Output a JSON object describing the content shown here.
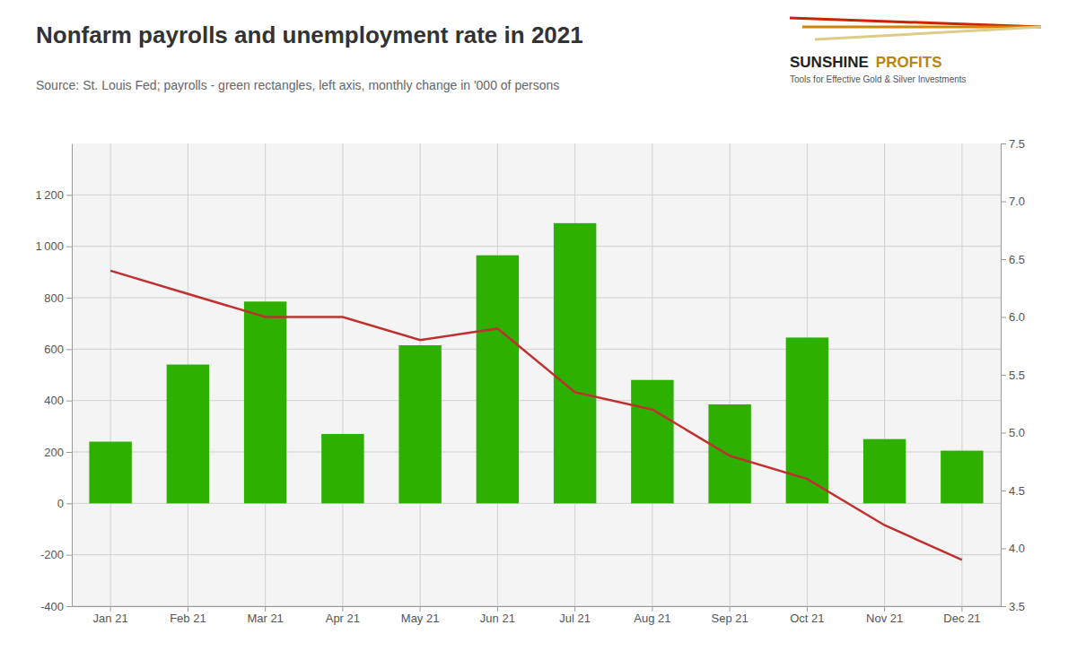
{
  "chart_data": {
    "type": "bar",
    "title": "Nonfarm payrolls and unemployment rate in 2021",
    "subtitle": "Source: St. Louis Fed; payrolls - green rectangles, left axis, monthly change in '000 of persons",
    "annotations": [
      "SUNSHINE",
      "PROFITS",
      "Tools for Effective Gold & Silver Investments"
    ],
    "categories": [
      "Jan 21",
      "Feb 21",
      "Mar 21",
      "Apr 21",
      "May 21",
      "Jun 21",
      "Jul 21",
      "Aug 21",
      "Sep 21",
      "Oct 21",
      "Nov 21",
      "Dec 21"
    ],
    "series": [
      {
        "type": "bar",
        "color": "#2DB000",
        "values": [
          240,
          540,
          785,
          270,
          615,
          965,
          1090,
          480,
          385,
          645,
          250,
          205
        ]
      },
      {
        "type": "line",
        "axis": "y2",
        "color": "#C03030",
        "values": [
          6.4,
          6.2,
          6.0,
          6.0,
          5.8,
          5.9,
          5.35,
          5.2,
          4.8,
          4.6,
          4.2,
          3.9
        ]
      }
    ],
    "ylim": [
      -400,
      1400
    ],
    "yticks": [
      -400,
      -200,
      0,
      200,
      400,
      600,
      800,
      {
        "value": 1000,
        "label": "1 000"
      },
      {
        "value": 1200,
        "label": "1 200"
      }
    ],
    "y2lim": [
      3.5,
      7.5
    ],
    "y2ticks": [
      3.5,
      {
        "value": 4,
        "label": "4.0"
      },
      4.5,
      {
        "value": 5,
        "label": "5.0"
      },
      5.5,
      {
        "value": 6,
        "label": "6.0"
      },
      6.5,
      {
        "value": 7,
        "label": "7.0"
      },
      7.5
    ],
    "grid": true
  }
}
